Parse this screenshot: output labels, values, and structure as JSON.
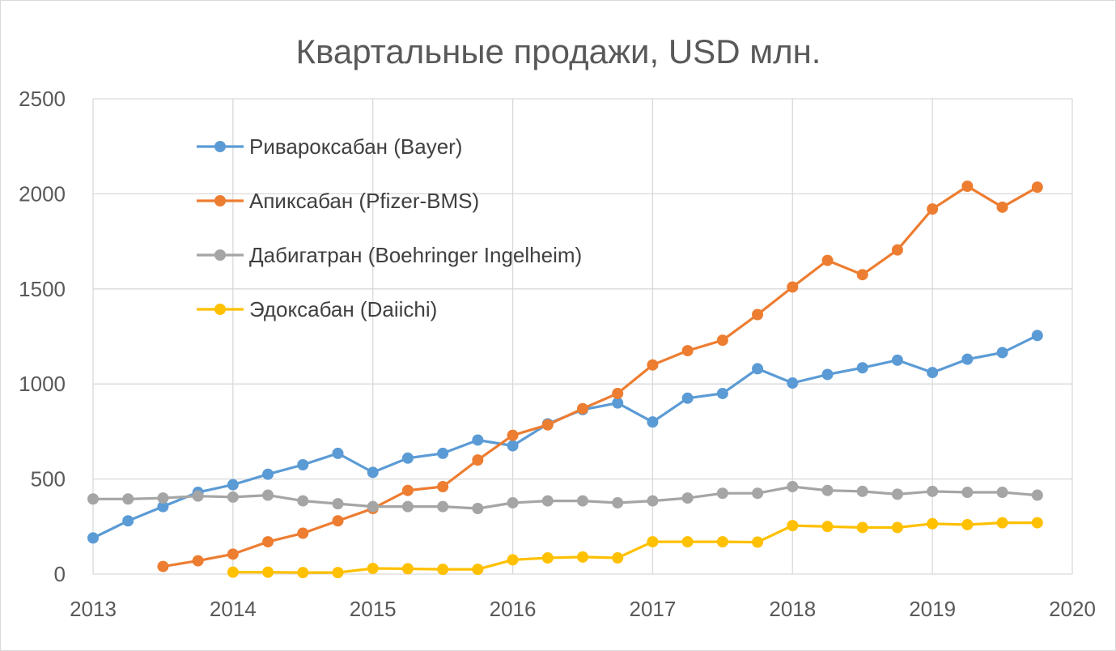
{
  "chart_data": {
    "type": "line",
    "title": "Квартальные продажи, USD млн.",
    "xlabel": "",
    "ylabel": "",
    "xlim": [
      2013,
      2020
    ],
    "ylim": [
      0,
      2500
    ],
    "x_ticks": [
      "2013",
      "2014",
      "2015",
      "2016",
      "2017",
      "2018",
      "2019",
      "2020"
    ],
    "y_ticks": [
      "0",
      "500",
      "1000",
      "1500",
      "2000",
      "2500"
    ],
    "grid": true,
    "legend_position": "top-left",
    "series": [
      {
        "name": "Ривароксабан (Bayer)",
        "color": "#5b9bd5",
        "x": [
          2013.0,
          2013.25,
          2013.5,
          2013.75,
          2014.0,
          2014.25,
          2014.5,
          2014.75,
          2015.0,
          2015.25,
          2015.5,
          2015.75,
          2016.0,
          2016.25,
          2016.5,
          2016.75,
          2017.0,
          2017.25,
          2017.5,
          2017.75,
          2018.0,
          2018.25,
          2018.5,
          2018.75,
          2019.0,
          2019.25,
          2019.5,
          2019.75
        ],
        "y": [
          190,
          280,
          355,
          430,
          470,
          525,
          575,
          635,
          535,
          610,
          635,
          705,
          675,
          790,
          865,
          900,
          800,
          925,
          950,
          1080,
          1005,
          1050,
          1085,
          1125,
          1060,
          1130,
          1165,
          1255
        ]
      },
      {
        "name": "Апиксабан (Pfizer-BMS)",
        "color": "#ed7d31",
        "x": [
          2013.5,
          2013.75,
          2014.0,
          2014.25,
          2014.5,
          2014.75,
          2015.0,
          2015.25,
          2015.5,
          2015.75,
          2016.0,
          2016.25,
          2016.5,
          2016.75,
          2017.0,
          2017.25,
          2017.5,
          2017.75,
          2018.0,
          2018.25,
          2018.5,
          2018.75,
          2019.0,
          2019.25,
          2019.5,
          2019.75
        ],
        "y": [
          40,
          70,
          105,
          170,
          215,
          280,
          345,
          440,
          460,
          600,
          730,
          785,
          870,
          950,
          1100,
          1175,
          1230,
          1365,
          1510,
          1650,
          1575,
          1705,
          1920,
          2040,
          1930,
          2035
        ]
      },
      {
        "name": "Дабигатран (Boehringer Ingelheim)",
        "color": "#a5a5a5",
        "x": [
          2013.0,
          2013.25,
          2013.5,
          2013.75,
          2014.0,
          2014.25,
          2014.5,
          2014.75,
          2015.0,
          2015.25,
          2015.5,
          2015.75,
          2016.0,
          2016.25,
          2016.5,
          2016.75,
          2017.0,
          2017.25,
          2017.5,
          2017.75,
          2018.0,
          2018.25,
          2018.5,
          2018.75,
          2019.0,
          2019.25,
          2019.5,
          2019.75
        ],
        "y": [
          395,
          395,
          400,
          410,
          405,
          415,
          385,
          370,
          355,
          355,
          355,
          345,
          375,
          385,
          385,
          375,
          385,
          400,
          425,
          425,
          460,
          440,
          435,
          420,
          435,
          430,
          430,
          415
        ]
      },
      {
        "name": "Эдоксабан (Daiichi)",
        "color": "#ffc000",
        "x": [
          2014.0,
          2014.25,
          2014.5,
          2014.75,
          2015.0,
          2015.25,
          2015.5,
          2015.75,
          2016.0,
          2016.25,
          2016.5,
          2016.75,
          2017.0,
          2017.25,
          2017.5,
          2017.75,
          2018.0,
          2018.25,
          2018.5,
          2018.75,
          2019.0,
          2019.25,
          2019.5,
          2019.75
        ],
        "y": [
          10,
          10,
          8,
          8,
          30,
          28,
          25,
          25,
          75,
          85,
          90,
          85,
          170,
          170,
          170,
          168,
          255,
          250,
          245,
          245,
          265,
          260,
          270,
          270
        ]
      }
    ]
  }
}
